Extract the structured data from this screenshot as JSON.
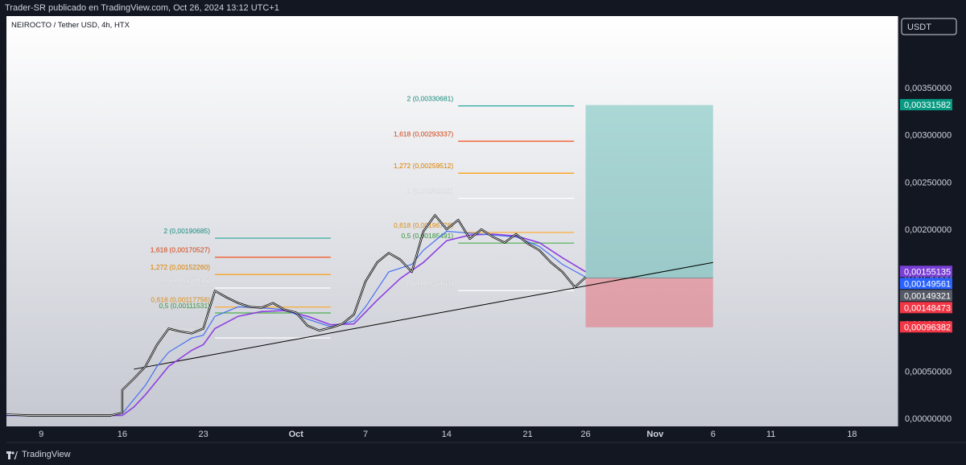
{
  "header": {
    "published": "Trader-SR publicado en TradingView.com, Oct 26, 2024 13:12 UTC+1"
  },
  "footer": {
    "brand": "TradingView",
    "logo_icon": "tradingview-logo-icon"
  },
  "chart_data": {
    "type": "line",
    "title": "NEIROCTO / Tether USD, 4h, HTX",
    "currency": "USDT",
    "ylim": [
      0,
      0.0039
    ],
    "xlim": [
      "2024-09-06",
      "2024-11-22"
    ],
    "y_ticks": [
      "0,00000000",
      "0,00050000",
      "0,00100000",
      "0,00150000",
      "0,00200000",
      "0,00250000",
      "0,00300000",
      "0,00350000"
    ],
    "x_ticks": [
      {
        "label": "9",
        "date": "2024-09-09",
        "bold": false
      },
      {
        "label": "16",
        "date": "2024-09-16",
        "bold": false
      },
      {
        "label": "23",
        "date": "2024-09-23",
        "bold": false
      },
      {
        "label": "Oct",
        "date": "2024-10-01",
        "bold": true
      },
      {
        "label": "7",
        "date": "2024-10-07",
        "bold": false
      },
      {
        "label": "14",
        "date": "2024-10-14",
        "bold": false
      },
      {
        "label": "21",
        "date": "2024-10-21",
        "bold": false
      },
      {
        "label": "26",
        "date": "2024-10-26",
        "bold": false
      },
      {
        "label": "Nov",
        "date": "2024-11-01",
        "bold": true
      },
      {
        "label": "6",
        "date": "2024-11-06",
        "bold": false
      },
      {
        "label": "11",
        "date": "2024-11-11",
        "bold": false
      },
      {
        "label": "18",
        "date": "2024-11-18",
        "bold": false
      }
    ],
    "price_series": {
      "name": "",
      "color": "#ffffff",
      "points": [
        [
          "2024-09-06",
          4e-05
        ],
        [
          "2024-09-08",
          3e-05
        ],
        [
          "2024-09-10",
          3e-05
        ],
        [
          "2024-09-12",
          3e-05
        ],
        [
          "2024-09-14",
          3e-05
        ],
        [
          "2024-09-15",
          3e-05
        ],
        [
          "2024-09-16",
          6e-05
        ],
        [
          "2024-09-16",
          0.0003
        ],
        [
          "2024-09-17",
          0.00042
        ],
        [
          "2024-09-18",
          0.00055
        ],
        [
          "2024-09-19",
          0.00078
        ],
        [
          "2024-09-20",
          0.00095
        ],
        [
          "2024-09-21",
          0.00092
        ],
        [
          "2024-09-22",
          0.0009
        ],
        [
          "2024-09-23",
          0.00095
        ],
        [
          "2024-09-24",
          0.00135
        ],
        [
          "2024-09-25",
          0.00128
        ],
        [
          "2024-09-26",
          0.00122
        ],
        [
          "2024-09-27",
          0.00118
        ],
        [
          "2024-09-28",
          0.00117
        ],
        [
          "2024-09-29",
          0.00122
        ],
        [
          "2024-09-30",
          0.00115
        ],
        [
          "2024-10-01",
          0.00112
        ],
        [
          "2024-10-02",
          0.00098
        ],
        [
          "2024-10-03",
          0.00093
        ],
        [
          "2024-10-04",
          0.00096
        ],
        [
          "2024-10-05",
          0.001
        ],
        [
          "2024-10-06",
          0.0011
        ],
        [
          "2024-10-07",
          0.00145
        ],
        [
          "2024-10-08",
          0.00165
        ],
        [
          "2024-10-09",
          0.00175
        ],
        [
          "2024-10-10",
          0.00168
        ],
        [
          "2024-10-11",
          0.00155
        ],
        [
          "2024-10-12",
          0.00198
        ],
        [
          "2024-10-13",
          0.00215
        ],
        [
          "2024-10-14",
          0.002
        ],
        [
          "2024-10-15",
          0.0021
        ],
        [
          "2024-10-16",
          0.0019
        ],
        [
          "2024-10-17",
          0.002
        ],
        [
          "2024-10-18",
          0.00192
        ],
        [
          "2024-10-19",
          0.00186
        ],
        [
          "2024-10-20",
          0.00195
        ],
        [
          "2024-10-21",
          0.00185
        ],
        [
          "2024-10-22",
          0.00178
        ],
        [
          "2024-10-23",
          0.00165
        ],
        [
          "2024-10-24",
          0.00155
        ],
        [
          "2024-10-25",
          0.0014
        ],
        [
          "2024-10-25",
          0.00138
        ],
        [
          "2024-10-26",
          0.00149321
        ]
      ]
    },
    "ema_fast": {
      "color": "#4a6ff0",
      "last": 0.00149561,
      "points": [
        [
          "2024-09-06",
          3e-05
        ],
        [
          "2024-09-15",
          3e-05
        ],
        [
          "2024-09-16",
          5e-05
        ],
        [
          "2024-09-17",
          0.0002
        ],
        [
          "2024-09-18",
          0.00035
        ],
        [
          "2024-09-19",
          0.00055
        ],
        [
          "2024-09-20",
          0.0007
        ],
        [
          "2024-09-22",
          0.00085
        ],
        [
          "2024-09-23",
          0.00088
        ],
        [
          "2024-09-24",
          0.00108
        ],
        [
          "2024-09-26",
          0.00118
        ],
        [
          "2024-09-28",
          0.00117
        ],
        [
          "2024-09-30",
          0.00115
        ],
        [
          "2024-10-02",
          0.00105
        ],
        [
          "2024-10-04",
          0.00097
        ],
        [
          "2024-10-06",
          0.00103
        ],
        [
          "2024-10-07",
          0.00118
        ],
        [
          "2024-10-09",
          0.00155
        ],
        [
          "2024-10-11",
          0.00163
        ],
        [
          "2024-10-12",
          0.00178
        ],
        [
          "2024-10-14",
          0.00198
        ],
        [
          "2024-10-16",
          0.00196
        ],
        [
          "2024-10-18",
          0.00194
        ],
        [
          "2024-10-20",
          0.00192
        ],
        [
          "2024-10-22",
          0.00182
        ],
        [
          "2024-10-24",
          0.00163
        ],
        [
          "2024-10-26",
          0.00149561
        ]
      ]
    },
    "ema_slow": {
      "color": "#8e3fe0",
      "last": 0.00155135,
      "points": [
        [
          "2024-09-06",
          3e-05
        ],
        [
          "2024-09-16",
          3e-05
        ],
        [
          "2024-09-17",
          0.00012
        ],
        [
          "2024-09-18",
          0.00025
        ],
        [
          "2024-09-19",
          0.0004
        ],
        [
          "2024-09-20",
          0.00055
        ],
        [
          "2024-09-22",
          0.00072
        ],
        [
          "2024-09-23",
          0.00078
        ],
        [
          "2024-09-24",
          0.00095
        ],
        [
          "2024-09-26",
          0.00108
        ],
        [
          "2024-09-28",
          0.00113
        ],
        [
          "2024-09-30",
          0.00114
        ],
        [
          "2024-10-02",
          0.00108
        ],
        [
          "2024-10-04",
          0.00099
        ],
        [
          "2024-10-06",
          0.001
        ],
        [
          "2024-10-08",
          0.00125
        ],
        [
          "2024-10-10",
          0.00148
        ],
        [
          "2024-10-12",
          0.00165
        ],
        [
          "2024-10-14",
          0.00188
        ],
        [
          "2024-10-16",
          0.00194
        ],
        [
          "2024-10-18",
          0.00195
        ],
        [
          "2024-10-20",
          0.00193
        ],
        [
          "2024-10-22",
          0.00186
        ],
        [
          "2024-10-24",
          0.0017
        ],
        [
          "2024-10-26",
          0.00155135
        ]
      ]
    },
    "trendline": {
      "color": "#000000",
      "start": [
        "2024-09-17",
        0.00052
      ],
      "end": [
        "2024-11-06",
        0.00165
      ]
    },
    "fib_sets": [
      {
        "x_start": "2024-09-24",
        "x_end": "2024-10-04",
        "levels": [
          {
            "label": "2 (0,00190685)",
            "value": 0.00190685,
            "color": "#26a69a"
          },
          {
            "label": "1,618 (0,00170527)",
            "value": 0.00170527,
            "color": "#f4511e"
          },
          {
            "label": "1,272 (0,00152260)",
            "value": 0.0015226,
            "color": "#ff9800"
          },
          {
            "label": "1 (0,00137916)",
            "value": 0.00137916,
            "color": "#ffffff"
          },
          {
            "label": "0,618 (0,00117756)",
            "value": 0.00117756,
            "color": "#ffa726"
          },
          {
            "label": "0,5 (0,00111531)",
            "value": 0.00111531,
            "color": "#4caf50"
          },
          {
            "label": "0 (0,00085147)",
            "value": 0.00085147,
            "color": "#ffffff"
          }
        ]
      },
      {
        "x_start": "2024-10-15",
        "x_end": "2024-10-25",
        "levels": [
          {
            "label": "2 (0,00330681)",
            "value": 0.00330681,
            "color": "#26a69a"
          },
          {
            "label": "1,618 (0,00293337)",
            "value": 0.00293337,
            "color": "#f4511e"
          },
          {
            "label": "1,272 (0,00259512)",
            "value": 0.00259512,
            "color": "#ff9800"
          },
          {
            "label": "1 (0,00232921)",
            "value": 0.00232921,
            "color": "#ffffff"
          },
          {
            "label": "0,618 (0,00196776)",
            "value": 0.00196776,
            "color": "#ffa726"
          },
          {
            "label": "0,5 (0,00185491)",
            "value": 0.00185491,
            "color": "#4caf50"
          },
          {
            "label": "0 (0,00135161)",
            "value": 0.00135161,
            "color": "#ffffff"
          }
        ]
      }
    ],
    "position": {
      "x_start": "2024-10-26",
      "x_end": "2024-11-06",
      "entry": 0.00148473,
      "target": 0.00331582,
      "stop": 0.00096382,
      "profit_color": "#26a69a",
      "loss_color": "#f23645"
    },
    "price_labels": [
      {
        "text": "0,00331582",
        "value": 0.00331582,
        "color": "#089981"
      },
      {
        "text": "0,00155135",
        "value": 0.00155135,
        "color": "#7b3fd6"
      },
      {
        "text": "0,00149561",
        "value": 0.00149561,
        "color": "#2962ff"
      },
      {
        "text": "0,00149321",
        "value": 0.00149321,
        "color": "#555a66"
      },
      {
        "text": "0,00148473",
        "value": 0.00148473,
        "color": "#f23645"
      },
      {
        "text": "0,00096382",
        "value": 0.00096382,
        "color": "#f23645"
      }
    ]
  }
}
